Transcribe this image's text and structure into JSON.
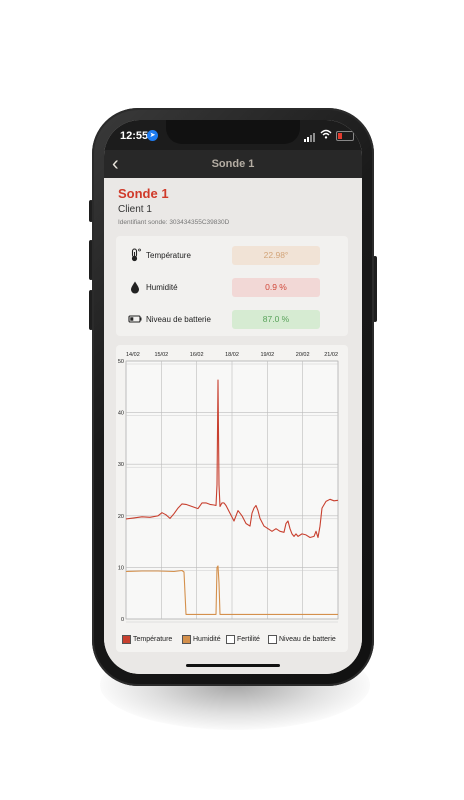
{
  "status_bar": {
    "time": "12:55"
  },
  "nav": {
    "title": "Sonde 1"
  },
  "header": {
    "title": "Sonde 1",
    "client": "Client 1",
    "identifier": "Identifiant sonde: 303434355C39830D"
  },
  "metrics": [
    {
      "label": "Température",
      "value": "22.98°",
      "icon": "thermometer-icon",
      "bg": "#f1e3d6",
      "fg": "#d2a478"
    },
    {
      "label": "Humidité",
      "value": "0.9 %",
      "icon": "droplet-icon",
      "bg": "#f2d8d6",
      "fg": "#d0483a"
    },
    {
      "label": "Niveau de batterie",
      "value": "87.0 %",
      "icon": "battery-icon",
      "bg": "#d6ebd2",
      "fg": "#58a25a"
    }
  ],
  "chart_data": {
    "type": "line",
    "x_tick_labels": [
      "14/02",
      "15/02",
      "16/02",
      "18/02",
      "19/02",
      "20/02",
      "21/02"
    ],
    "y_ticks": [
      0,
      10,
      20,
      30,
      40,
      50
    ],
    "ylim": [
      0,
      50
    ],
    "grid": true,
    "legend_placement": "bottom",
    "series": [
      {
        "name": "Température",
        "color": "#c8402f",
        "points": [
          [
            0,
            19.4
          ],
          [
            4,
            19.6
          ],
          [
            8,
            19.8
          ],
          [
            12,
            19.7
          ],
          [
            16,
            20.0
          ],
          [
            18,
            20.6
          ],
          [
            20,
            20.2
          ],
          [
            22,
            19.5
          ],
          [
            24,
            20.4
          ],
          [
            26,
            21.5
          ],
          [
            28,
            22.3
          ],
          [
            30,
            22.2
          ],
          [
            33,
            21.8
          ],
          [
            36,
            21.4
          ],
          [
            38,
            22.5
          ],
          [
            40,
            22.5
          ],
          [
            42,
            22.2
          ],
          [
            44,
            22.1
          ],
          [
            45,
            22.0
          ],
          [
            45.5,
            26
          ],
          [
            46,
            46.3
          ],
          [
            46.5,
            26
          ],
          [
            47,
            21.8
          ],
          [
            48,
            22.5
          ],
          [
            49,
            22.5
          ],
          [
            50,
            22.0
          ],
          [
            52,
            20.5
          ],
          [
            54,
            19.0
          ],
          [
            56,
            21.0
          ],
          [
            58,
            20.0
          ],
          [
            60,
            18.5
          ],
          [
            62,
            18.0
          ],
          [
            63,
            20.5
          ],
          [
            64,
            21.5
          ],
          [
            65,
            22.0
          ],
          [
            66,
            21.0
          ],
          [
            67,
            19.5
          ],
          [
            69,
            18.0
          ],
          [
            71,
            17.5
          ],
          [
            73,
            17.0
          ],
          [
            75,
            17.5
          ],
          [
            77,
            17.0
          ],
          [
            79,
            16.8
          ],
          [
            80,
            18.5
          ],
          [
            81,
            19.0
          ],
          [
            82,
            17.5
          ],
          [
            83,
            16.5
          ],
          [
            84,
            16.0
          ],
          [
            85,
            16.5
          ],
          [
            86,
            16.0
          ],
          [
            88,
            16.5
          ],
          [
            90,
            16.3
          ],
          [
            92,
            15.8
          ],
          [
            94,
            16.0
          ],
          [
            95,
            17.0
          ],
          [
            96,
            15.8
          ],
          [
            97,
            18.0
          ],
          [
            98,
            21.5
          ],
          [
            100,
            22.8
          ],
          [
            102,
            23.2
          ],
          [
            104,
            22.9
          ],
          [
            106,
            23.0
          ]
        ]
      },
      {
        "name": "Humidité",
        "color": "#d4904c",
        "points": [
          [
            0,
            9.2
          ],
          [
            8,
            9.3
          ],
          [
            16,
            9.3
          ],
          [
            24,
            9.2
          ],
          [
            28,
            9.4
          ],
          [
            29,
            9.1
          ],
          [
            30,
            0.9
          ],
          [
            34,
            0.9
          ],
          [
            38,
            0.9
          ],
          [
            45,
            0.9
          ],
          [
            45.5,
            10.0
          ],
          [
            46,
            10.3
          ],
          [
            46.5,
            7.0
          ],
          [
            47,
            0.9
          ],
          [
            55,
            0.9
          ],
          [
            70,
            0.9
          ],
          [
            85,
            0.9
          ],
          [
            100,
            0.9
          ],
          [
            106,
            0.9
          ]
        ]
      },
      {
        "name": "Fertilité",
        "color": "#ffffff",
        "points": []
      },
      {
        "name": "Niveau de batterie",
        "color": "#ffffff",
        "points": []
      }
    ]
  }
}
